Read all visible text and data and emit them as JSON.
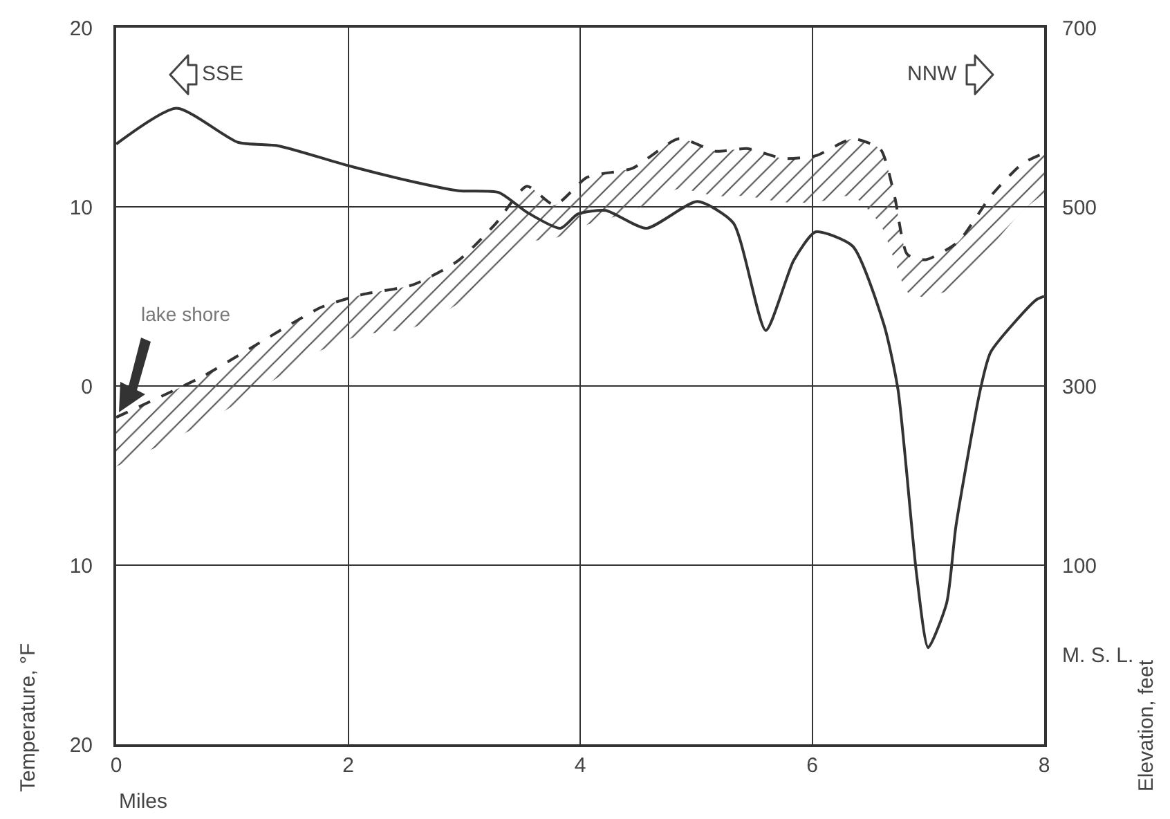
{
  "chart_data": {
    "type": "line",
    "xlabel": "Miles",
    "ylabel": "Temperature, °F",
    "y2label": "Elevation, feet",
    "xlim": [
      0,
      8
    ],
    "xticks": [
      0,
      2,
      4,
      6,
      8
    ],
    "ylim": [
      -20,
      20
    ],
    "yticks": [
      {
        "value": -20,
        "label": "20"
      },
      {
        "value": -10,
        "label": "10"
      },
      0,
      10,
      20
    ],
    "y2lim": [
      -100,
      700
    ],
    "y2ticks": [
      {
        "value": 0,
        "label": "M. S. L."
      },
      100,
      300,
      500,
      700
    ],
    "grid": true,
    "marker": "none",
    "annotations": [
      "SSE",
      "NNW",
      "lake shore"
    ],
    "series": [
      {
        "color": "#333333",
        "line_style": "solid",
        "x": [
          0,
          0.52,
          1.05,
          1.4,
          2,
          2.56,
          2.95,
          3.3,
          3.54,
          3.83,
          3.98,
          4.22,
          4.57,
          5.01,
          5.32,
          5.6,
          5.84,
          6.03,
          6.35,
          6.62,
          6.74,
          6.9,
          7.0,
          7.16,
          7.24,
          7.45,
          7.54,
          7.93,
          8
        ],
        "values": [
          13.5,
          15.5,
          13.6,
          13.4,
          12.3,
          11.4,
          10.9,
          10.8,
          9.7,
          8.8,
          9.6,
          9.8,
          8.8,
          10.3,
          9.1,
          3.1,
          7.0,
          8.6,
          7.8,
          3.4,
          -0.2,
          -10.5,
          -14.6,
          -12.1,
          -7.8,
          -0.2,
          1.9,
          4.8,
          5.0
        ]
      },
      {
        "color": "#333333",
        "line_style": "dashed",
        "axis": "y2",
        "x": [
          0,
          0.75,
          1.22,
          1.77,
          2.12,
          2.56,
          2.95,
          3.27,
          3.54,
          3.78,
          4.06,
          4.45,
          4.85,
          5.17,
          5.44,
          5.75,
          6.03,
          6.35,
          6.59,
          6.71,
          6.82,
          6.98,
          7.26,
          7.54,
          7.81,
          8
        ],
        "values": [
          265,
          311,
          347,
          388,
          402,
          413,
          440,
          481,
          523,
          502,
          533,
          543,
          576,
          562,
          565,
          554,
          557,
          576,
          564,
          512,
          447,
          441,
          461,
          512,
          548,
          560
        ],
        "upper": [
          265,
          311,
          347,
          388,
          402,
          413,
          440,
          481,
          523,
          502,
          533,
          543,
          576,
          562,
          565,
          554,
          557,
          576,
          564,
          512,
          447,
          441,
          461,
          512,
          548,
          560
        ],
        "lower": [
          210,
          258,
          295,
          340,
          357,
          365,
          392,
          430,
          460,
          465,
          480,
          495,
          520,
          512,
          512,
          505,
          505,
          512,
          480,
          440,
          405,
          399,
          412,
          455,
          495,
          515
        ]
      }
    ]
  }
}
